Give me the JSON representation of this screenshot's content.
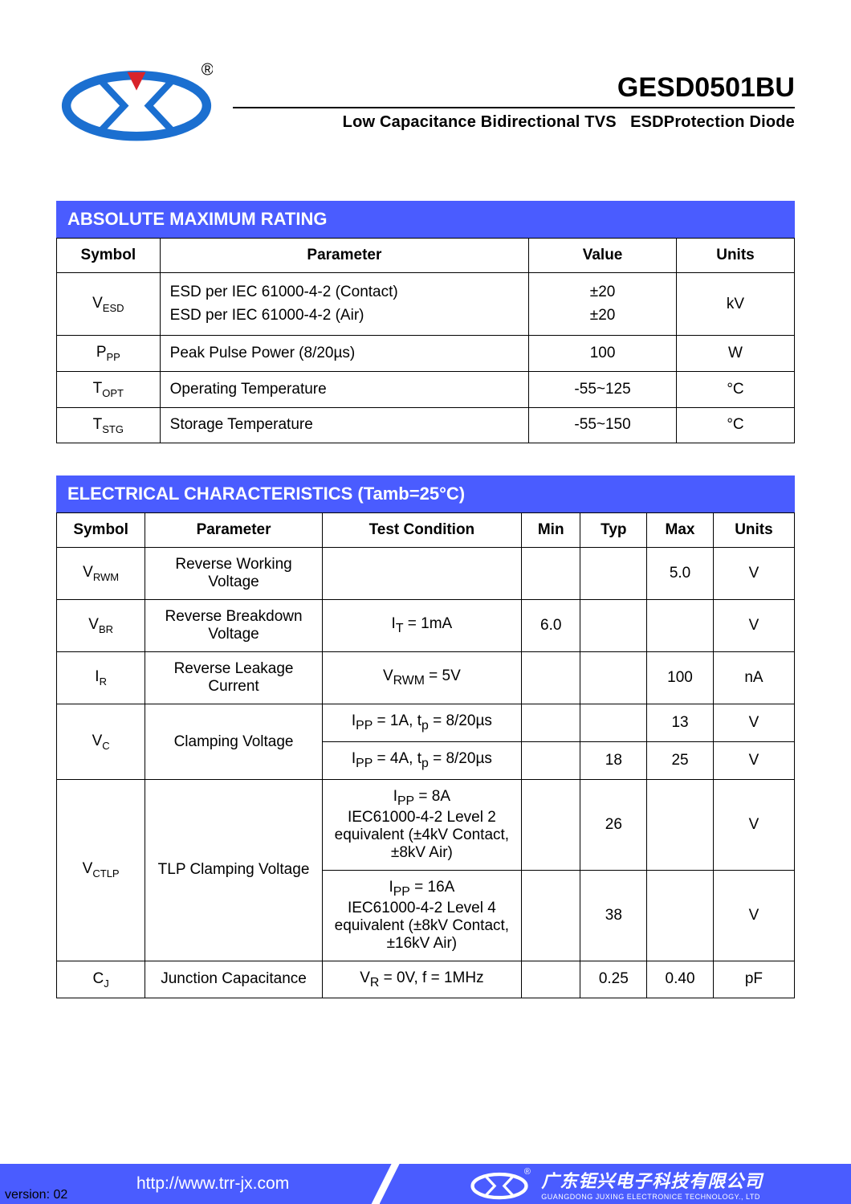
{
  "header": {
    "part_number": "GESD0501BU",
    "subtitle_a": "Low Capacitance Bidirectional TVS",
    "subtitle_b": "ESDProtection Diode",
    "registered": "®"
  },
  "colors": {
    "accent": "#4a5cff",
    "logo_blue": "#1b6fd0",
    "logo_red": "#d8232a"
  },
  "table1": {
    "title": "ABSOLUTE MAXIMUM RATING",
    "headers": [
      "Symbol",
      "Parameter",
      "Value",
      "Units"
    ],
    "rows": [
      {
        "sym_main": "V",
        "sym_sub": "ESD",
        "param_a": "ESD per IEC 61000-4-2 (Contact)",
        "param_b": "ESD per IEC 61000-4-2 (Air)",
        "val_a": "±20",
        "val_b": "±20",
        "units": "kV"
      },
      {
        "sym_main": "P",
        "sym_sub": "PP",
        "param": "Peak Pulse Power (8/20µs)",
        "value": "100",
        "units": "W"
      },
      {
        "sym_main": "T",
        "sym_sub": "OPT",
        "param": "Operating Temperature",
        "value": "-55~125",
        "units": "°C"
      },
      {
        "sym_main": "T",
        "sym_sub": "STG",
        "param": "Storage Temperature",
        "value": "-55~150",
        "units": "°C"
      }
    ],
    "col_widths": [
      "14%",
      "50%",
      "20%",
      "16%"
    ]
  },
  "table2": {
    "title": "ELECTRICAL CHARACTERISTICS (Tamb=25°C)",
    "headers": [
      "Symbol",
      "Parameter",
      "Test Condition",
      "Min",
      "Typ",
      "Max",
      "Units"
    ],
    "col_widths": [
      "12%",
      "24%",
      "27%",
      "8%",
      "9%",
      "9%",
      "11%"
    ],
    "rows": [
      {
        "sym_main": "V",
        "sym_sub": "RWM",
        "param": "Reverse Working Voltage",
        "tc": "",
        "min": "",
        "typ": "",
        "max": "5.0",
        "units": "V"
      },
      {
        "sym_main": "V",
        "sym_sub": "BR",
        "param": "Reverse Breakdown Voltage",
        "tc_html": "I<sub>T</sub> = 1mA",
        "min": "6.0",
        "typ": "",
        "max": "",
        "units": "V"
      },
      {
        "sym_main": "I",
        "sym_sub": "R",
        "param": "Reverse Leakage Current",
        "tc_html": "V<sub>RWM</sub> = 5V",
        "min": "",
        "typ": "",
        "max": "100",
        "units": "nA"
      },
      {
        "sym_main": "V",
        "sym_sub": "C",
        "param": "Clamping Voltage",
        "rowspan": 2,
        "sub": [
          {
            "tc_html": "I<sub>PP</sub> = 1A, t<sub>p</sub> = 8/20µs",
            "min": "",
            "typ": "",
            "max": "13",
            "units": "V"
          },
          {
            "tc_html": "I<sub>PP</sub> = 4A, t<sub>p</sub> = 8/20µs",
            "min": "",
            "typ": "18",
            "max": "25",
            "units": "V"
          }
        ]
      },
      {
        "sym_main": "V",
        "sym_sub": "CTLP",
        "param": "TLP Clamping Voltage",
        "rowspan": 2,
        "sub": [
          {
            "tc_html": "I<sub>PP</sub> = 8A<br>IEC61000-4-2 Level 2 equivalent (±4kV Contact, ±8kV Air)",
            "min": "",
            "typ": "26",
            "max": "",
            "units": "V"
          },
          {
            "tc_html": "I<sub>PP</sub> = 16A<br>IEC61000-4-2 Level 4 equivalent (±8kV Contact, ±16kV Air)",
            "min": "",
            "typ": "38",
            "max": "",
            "units": "V"
          }
        ]
      },
      {
        "sym_main": "C",
        "sym_sub": "J",
        "param": "Junction Capacitance",
        "tc_html": "V<sub>R</sub> = 0V, f = 1MHz",
        "min": "",
        "typ": "0.25",
        "max": "0.40",
        "units": "pF"
      }
    ]
  },
  "footer": {
    "url": "http://www.trr-jx.com",
    "company_cn": "广东钜兴电子科技有限公司",
    "company_en": "GUANGDONG JUXING ELECTRONICE TECHNOLOGY., LTD",
    "version": "version: 02"
  }
}
